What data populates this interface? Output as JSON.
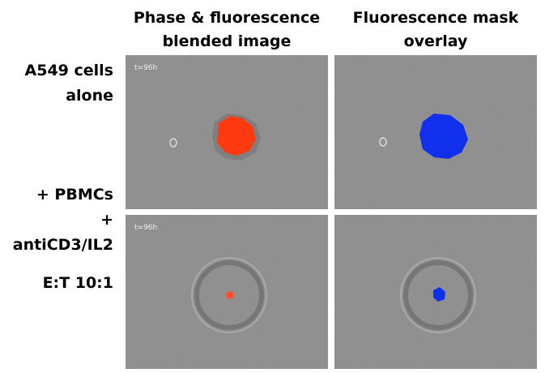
{
  "header": {
    "columns": [
      [
        "Phase & fluorescence",
        "blended image"
      ],
      [
        "Fluorescence mask",
        "overlay"
      ]
    ]
  },
  "rows": [
    {
      "label": [
        "A549 cells",
        "alone"
      ]
    },
    {
      "label": [
        "+ PBMCs",
        "+",
        "antiCD3/IL2",
        "E:T 10:1"
      ]
    }
  ],
  "panels": [
    {
      "timestamp": "t=96h"
    },
    {
      "timestamp": "t=96h"
    }
  ]
}
